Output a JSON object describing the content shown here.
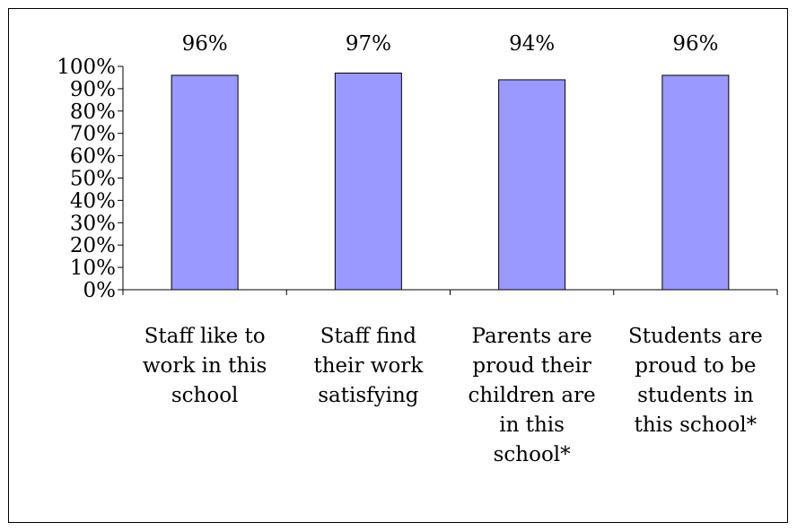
{
  "chart_data": {
    "type": "bar",
    "categories": [
      "Staff like to work in this school",
      "Staff find their work satisfying",
      "Parents are proud their children are in this school*",
      "Students are proud to be students in this school*"
    ],
    "category_lines": [
      [
        "Staff like to",
        "work in this",
        "school"
      ],
      [
        "Staff find",
        "their work",
        "satisfying"
      ],
      [
        "Parents are",
        "proud their",
        "children are",
        "in this",
        "school*"
      ],
      [
        "Students are",
        "proud to be",
        "students in",
        "this school*"
      ]
    ],
    "values": [
      96,
      97,
      94,
      96
    ],
    "data_labels": [
      "96%",
      "97%",
      "94%",
      "96%"
    ],
    "ylim": [
      0,
      100
    ],
    "ytick_labels": [
      "0%",
      "10%",
      "20%",
      "30%",
      "40%",
      "50%",
      "60%",
      "70%",
      "80%",
      "90%",
      "100%"
    ],
    "bar_color": "#9999ff",
    "title": "",
    "xlabel": "",
    "ylabel": "",
    "grid": false,
    "legend": "none"
  }
}
